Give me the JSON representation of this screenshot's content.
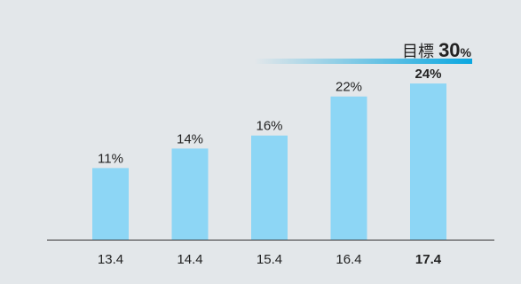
{
  "colors": {
    "background": "#e3e7ea",
    "bar": "#8dd6f5",
    "target_accent": "#0ba7e0",
    "text": "#222222",
    "axis": "#333333"
  },
  "target": {
    "label": "目標",
    "value": "30",
    "unit": "%"
  },
  "chart_data": {
    "type": "bar",
    "title": "",
    "xlabel": "",
    "ylabel": "",
    "categories": [
      "13.4",
      "14.4",
      "15.4",
      "16.4",
      "17.4"
    ],
    "values": [
      11,
      14,
      16,
      22,
      24
    ],
    "value_labels": [
      "11%",
      "14%",
      "16%",
      "22%",
      "24%"
    ],
    "highlight_index": 4,
    "ylim": [
      0,
      30
    ],
    "grid": false
  }
}
